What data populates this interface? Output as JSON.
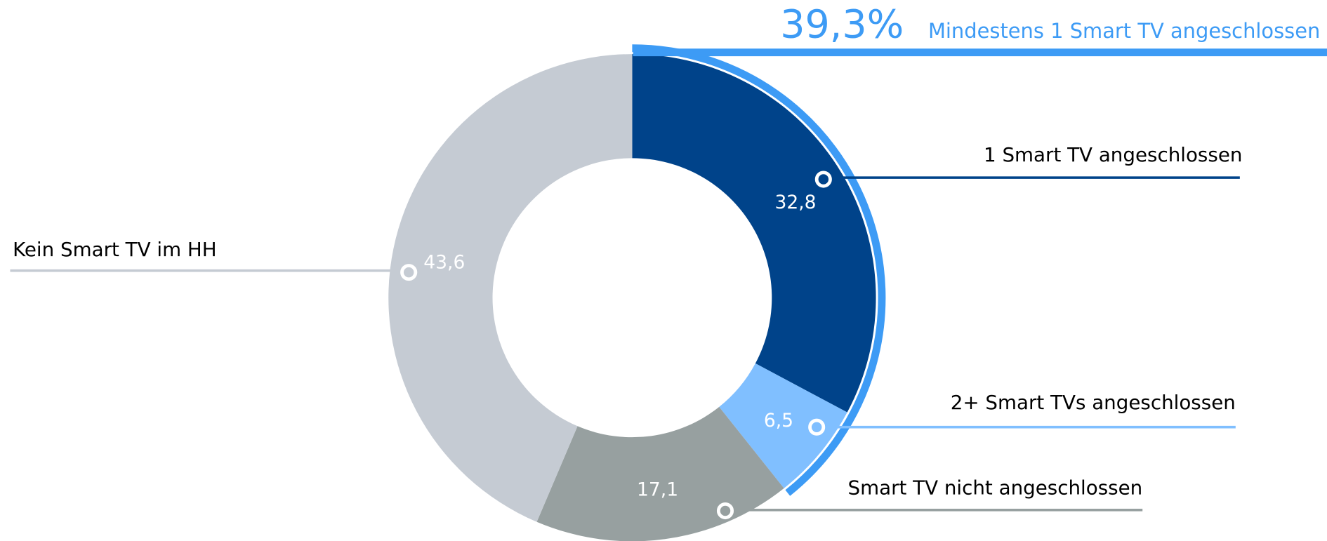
{
  "chart_data": {
    "type": "donut",
    "categories": [
      "1 Smart TV angeschlossen",
      "2+ Smart TVs angeschlossen",
      "Smart TV nicht angeschlossen",
      "Kein Smart TV im HH"
    ],
    "values": [
      32.8,
      6.5,
      17.1,
      43.6
    ],
    "value_labels": [
      "32,8",
      "6,5",
      "17,1",
      "43,6"
    ],
    "colors": [
      "#00438a",
      "#80bfff",
      "#97a0a0",
      "#c5cbd3"
    ],
    "highlight": {
      "value": 39.3,
      "label": "39,3%",
      "text": "Mindestens 1 Smart TV angeschlossen",
      "color": "#3d9bf5"
    }
  }
}
